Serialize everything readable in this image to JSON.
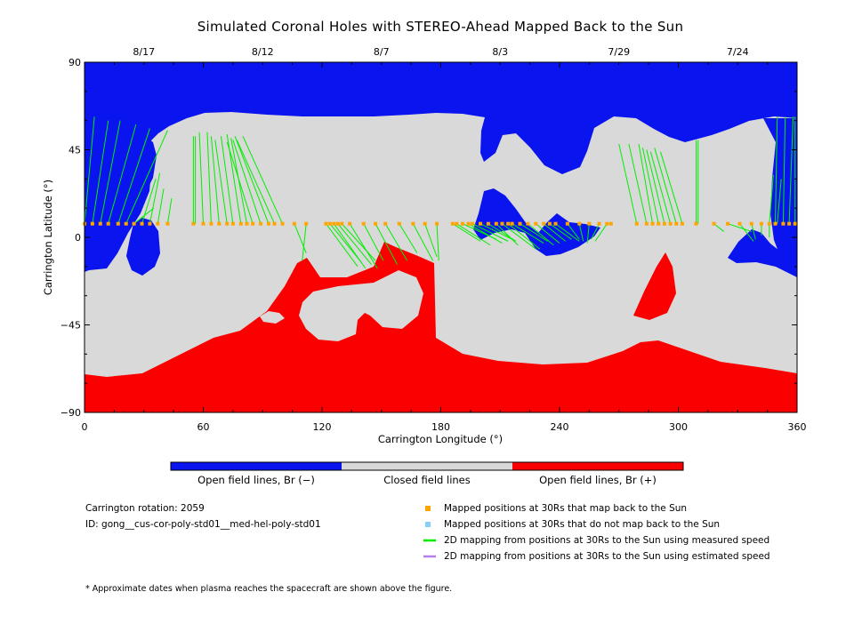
{
  "chart_data": {
    "type": "map",
    "title": "Simulated Coronal Holes with STEREO-Ahead Mapped Back to the Sun",
    "xlabel": "Carrington Longitude (°)",
    "ylabel": "Carrington Latitude (°)",
    "xlim": [
      0,
      360
    ],
    "ylim": [
      -90,
      90
    ],
    "x_ticks": [
      0,
      60,
      120,
      180,
      240,
      300,
      360
    ],
    "y_ticks": [
      -90,
      -45,
      0,
      45,
      90
    ],
    "x_tick_labels": [
      "0",
      "60",
      "120",
      "180",
      "240",
      "300",
      "360"
    ],
    "y_tick_labels": [
      "−90",
      "−45",
      "0",
      "45",
      "90"
    ],
    "top_dates": [
      {
        "lon": 30,
        "label": "8/17"
      },
      {
        "lon": 90,
        "label": "8/12"
      },
      {
        "lon": 150,
        "label": "8/7"
      },
      {
        "lon": 210,
        "label": "8/3"
      },
      {
        "lon": 270,
        "label": "7/29"
      },
      {
        "lon": 330,
        "label": "7/24"
      }
    ],
    "colors": {
      "open_negative": "#0a14ee",
      "closed": "#d9d9d9",
      "open_positive": "#fb0000",
      "mapped": "#ffa500",
      "unmapped": "#87cefa",
      "measured": "#00ee00",
      "estimated": "#b87ee8"
    },
    "colorbar_labels": [
      "Open field lines, Br (−)",
      "Closed field lines",
      "Open field lines, Br (+)"
    ],
    "spacecraft_lat": 7,
    "mapped_points_lon": [
      0,
      4,
      8,
      12,
      17,
      21,
      25,
      29,
      33,
      37,
      42,
      55,
      60,
      64,
      68,
      72,
      75,
      79,
      82,
      85,
      89,
      93,
      96,
      100,
      106,
      112,
      122,
      124,
      126,
      128,
      130,
      134,
      141,
      147,
      152,
      159,
      166,
      172,
      178,
      186,
      188,
      191,
      194,
      196,
      200,
      204,
      208,
      211,
      214,
      216,
      220,
      224,
      228,
      232,
      235,
      238,
      244,
      250,
      255,
      260,
      264,
      266,
      279,
      284,
      287,
      290,
      293,
      296,
      299,
      302,
      309,
      318,
      325,
      331,
      337,
      342,
      346,
      349,
      353,
      356,
      359
    ],
    "mapping_lines": [
      [
        0,
        7,
        5,
        62
      ],
      [
        4,
        7,
        12,
        60
      ],
      [
        8,
        7,
        18,
        60
      ],
      [
        12,
        7,
        26,
        58
      ],
      [
        17,
        7,
        33,
        56
      ],
      [
        21,
        7,
        42,
        55
      ],
      [
        25,
        7,
        35,
        15
      ],
      [
        29,
        7,
        36,
        30
      ],
      [
        33,
        7,
        38,
        33
      ],
      [
        37,
        7,
        40,
        25
      ],
      [
        42,
        7,
        44,
        20
      ],
      [
        55,
        7,
        55,
        52
      ],
      [
        56,
        7,
        56,
        52
      ],
      [
        60,
        7,
        58,
        54
      ],
      [
        64,
        7,
        62,
        54
      ],
      [
        68,
        7,
        64,
        52
      ],
      [
        72,
        7,
        66,
        50
      ],
      [
        75,
        7,
        69,
        52
      ],
      [
        79,
        7,
        72,
        53
      ],
      [
        82,
        7,
        74,
        51
      ],
      [
        85,
        7,
        72,
        49
      ],
      [
        89,
        7,
        75,
        50
      ],
      [
        93,
        7,
        76,
        52
      ],
      [
        96,
        7,
        77,
        50
      ],
      [
        100,
        7,
        80,
        52
      ],
      [
        106,
        7,
        112,
        -8
      ],
      [
        112,
        7,
        110,
        -12
      ],
      [
        122,
        7,
        138,
        -15
      ],
      [
        124,
        7,
        140,
        -13
      ],
      [
        126,
        7,
        142,
        -16
      ],
      [
        128,
        7,
        145,
        -14
      ],
      [
        130,
        7,
        147,
        -12
      ],
      [
        134,
        7,
        148,
        -16
      ],
      [
        141,
        7,
        151,
        -12
      ],
      [
        147,
        7,
        158,
        -14
      ],
      [
        152,
        7,
        163,
        -12
      ],
      [
        159,
        7,
        168,
        -8
      ],
      [
        166,
        7,
        176,
        -12
      ],
      [
        172,
        7,
        178,
        -10
      ],
      [
        178,
        7,
        179,
        -12
      ],
      [
        186,
        7,
        200,
        -2
      ],
      [
        188,
        7,
        205,
        -4
      ],
      [
        191,
        7,
        208,
        -1
      ],
      [
        194,
        7,
        211,
        -3
      ],
      [
        196,
        7,
        214,
        -2
      ],
      [
        200,
        7,
        216,
        -1
      ],
      [
        204,
        7,
        218,
        -2
      ],
      [
        208,
        7,
        219,
        -4
      ],
      [
        211,
        7,
        228,
        -6
      ],
      [
        214,
        7,
        230,
        -6
      ],
      [
        216,
        7,
        232,
        -3
      ],
      [
        220,
        7,
        234,
        -2
      ],
      [
        224,
        7,
        237,
        -4
      ],
      [
        228,
        7,
        240,
        -3
      ],
      [
        232,
        7,
        243,
        -2
      ],
      [
        235,
        7,
        246,
        -1
      ],
      [
        238,
        7,
        250,
        -2
      ],
      [
        244,
        7,
        250,
        -1
      ],
      [
        250,
        7,
        252,
        -2
      ],
      [
        255,
        7,
        254,
        -3
      ],
      [
        260,
        7,
        256,
        -1
      ],
      [
        264,
        7,
        258,
        -2
      ],
      [
        279,
        7,
        270,
        48
      ],
      [
        284,
        7,
        275,
        48
      ],
      [
        287,
        7,
        280,
        48
      ],
      [
        290,
        7,
        282,
        46
      ],
      [
        293,
        7,
        284,
        45
      ],
      [
        296,
        7,
        286,
        44
      ],
      [
        299,
        7,
        288,
        46
      ],
      [
        302,
        7,
        291,
        44
      ],
      [
        309,
        7,
        309,
        50
      ],
      [
        310,
        7,
        310,
        50
      ],
      [
        318,
        7,
        323,
        3
      ],
      [
        325,
        7,
        337,
        3
      ],
      [
        331,
        7,
        338,
        -2
      ],
      [
        337,
        7,
        339,
        -1
      ],
      [
        342,
        7,
        342,
        1
      ],
      [
        346,
        7,
        346,
        0
      ],
      [
        349,
        7,
        350,
        62
      ],
      [
        353,
        7,
        354,
        62
      ],
      [
        356,
        7,
        358,
        62
      ],
      [
        359,
        7,
        359,
        62
      ],
      [
        350,
        7,
        352,
        30
      ],
      [
        346,
        7,
        348,
        32
      ]
    ]
  },
  "info": {
    "rotation": "Carrington rotation: 2059",
    "id": "ID: gong__cus-cor-poly-std01__med-hel-poly-std01"
  },
  "legend": {
    "mapped": "Mapped positions at 30Rs that map back to the Sun",
    "unmapped": "Mapped positions at 30Rs that do not map back to the Sun",
    "measured": "2D mapping from positions at 30Rs to the Sun using measured speed",
    "estimated": "2D mapping from positions at 30Rs to the Sun using estimated speed"
  },
  "footnote": "* Approximate dates when plasma reaches the spacecraft are shown above the figure."
}
